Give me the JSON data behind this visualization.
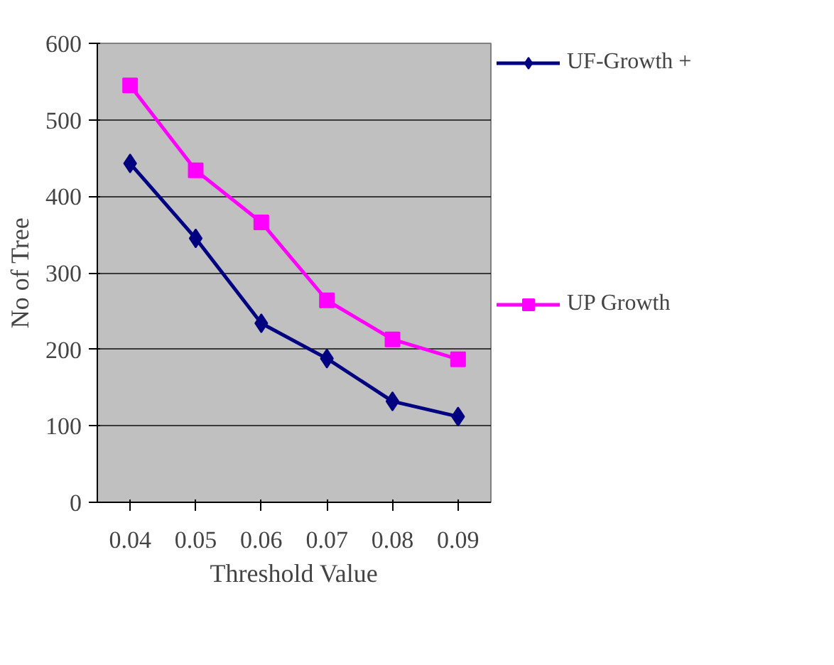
{
  "chart_data": {
    "type": "line",
    "xlabel": "Threshold Value",
    "ylabel": "No of Tree",
    "categories": [
      "0.04",
      "0.05",
      "0.06",
      "0.07",
      "0.08",
      "0.09"
    ],
    "series": [
      {
        "name": "UF-Growth +",
        "color": "#000080",
        "marker": "diamond",
        "values": [
          443,
          345,
          234,
          188,
          132,
          112
        ]
      },
      {
        "name": "UP Growth",
        "color": "#ff00ff",
        "marker": "square",
        "values": [
          545,
          434,
          366,
          264,
          213,
          187
        ]
      }
    ],
    "ylim": [
      0,
      600
    ],
    "yticks": [
      0,
      100,
      200,
      300,
      400,
      500,
      600
    ],
    "grid": "y",
    "legend": "right",
    "line_style": "solid"
  }
}
